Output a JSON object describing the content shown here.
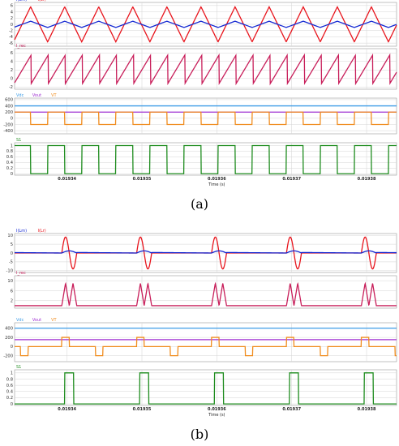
{
  "chart_data": [
    {
      "type": "line",
      "caption": "(a)",
      "x_axis": {
        "ticks": [
          "0.01934",
          "0.01935",
          "0.01936",
          "0.01937",
          "0.01938"
        ],
        "label": "Time (s)"
      },
      "panels": [
        {
          "legend": [
            "I(Lm)",
            "I(Lr)"
          ],
          "ylim": [
            -7,
            7
          ],
          "yticks": [
            "6",
            "4",
            "2",
            "0",
            "-2",
            "-4",
            "-6"
          ],
          "grid": true,
          "series": [
            {
              "color": "#e8141c",
              "shape": "triangle",
              "period": 4.55e-06,
              "values": [
                -5.6,
                5.6
              ]
            },
            {
              "color": "#1428d2",
              "shape": "triangle",
              "period": 4.55e-06,
              "values": [
                -1,
                1
              ]
            }
          ]
        },
        {
          "legend": [
            "I_rec"
          ],
          "ylim": [
            -2.5,
            7
          ],
          "yticks": [
            "6",
            "4",
            "2",
            "0",
            "-2"
          ],
          "grid": true,
          "series": [
            {
              "color": "#c81e5a",
              "shape": "sawtooth",
              "period": 2.28e-06,
              "values": [
                -1.2,
                5.5
              ]
            }
          ]
        },
        {
          "legend": [
            "Vdc",
            "Vout",
            "VT"
          ],
          "ylim": [
            -500,
            650
          ],
          "yticks": [
            "600",
            "400",
            "200",
            "0",
            "-200",
            "-400"
          ],
          "grid": true,
          "series": [
            {
              "color": "#3c9be6",
              "shape": "flat",
              "values": [
                400
              ]
            },
            {
              "color": "#a032d2",
              "shape": "flat",
              "values": [
                200
              ]
            },
            {
              "color": "#f08c1e",
              "shape": "square",
              "period": 4.55e-06,
              "values": [
                -200,
                200
              ]
            }
          ]
        },
        {
          "legend": [
            "S1"
          ],
          "ylim": [
            -0.05,
            1.1
          ],
          "yticks": [
            "1",
            "0.8",
            "0.6",
            "0.4",
            "0.2",
            "0"
          ],
          "grid": true,
          "series": [
            {
              "color": "#1e8c1e",
              "shape": "pulse",
              "period": 4.55e-06,
              "duty": 0.5,
              "values": [
                0,
                1
              ]
            }
          ]
        }
      ]
    },
    {
      "type": "line",
      "caption": "(b)",
      "x_axis": {
        "ticks": [
          "0.01934",
          "0.01935",
          "0.01936",
          "0.01937",
          "0.01938"
        ],
        "label": "Time (s)"
      },
      "panels": [
        {
          "legend": [
            "I(Lm)",
            "I(Lr)"
          ],
          "ylim": [
            -11,
            11
          ],
          "yticks": [
            "10",
            "5",
            "0",
            "-5",
            "-10"
          ],
          "grid": true,
          "series": [
            {
              "color": "#e8141c",
              "shape": "resonant_pair",
              "period": 1e-05,
              "values": [
                -9,
                9
              ]
            },
            {
              "color": "#1428d2",
              "shape": "magnetizing",
              "period": 1e-05,
              "values": [
                -2,
                2
              ]
            }
          ]
        },
        {
          "legend": [
            "I_rec"
          ],
          "ylim": [
            -1,
            12
          ],
          "yticks": [
            "10",
            "6",
            "2"
          ],
          "grid": true,
          "series": [
            {
              "color": "#c81e5a",
              "shape": "rectified_pulses",
              "period": 1e-05,
              "values": [
                0,
                9
              ]
            }
          ]
        },
        {
          "legend": [
            "Vdc",
            "Vout",
            "VT"
          ],
          "ylim": [
            -330,
            520
          ],
          "yticks": [
            "400",
            "200",
            "0",
            "-200"
          ],
          "grid": true,
          "series": [
            {
              "color": "#3c9be6",
              "shape": "flat",
              "values": [
                400
              ]
            },
            {
              "color": "#a032d2",
              "shape": "flat",
              "values": [
                150
              ]
            },
            {
              "color": "#f08c1e",
              "shape": "vt_burst",
              "period": 1e-05,
              "values": [
                -200,
                0,
                200
              ]
            }
          ]
        },
        {
          "legend": [
            "S1"
          ],
          "ylim": [
            -0.05,
            1.1
          ],
          "yticks": [
            "1",
            "0.8",
            "0.6",
            "0.4",
            "0.2",
            "0"
          ],
          "grid": true,
          "series": [
            {
              "color": "#1e8c1e",
              "shape": "narrow_pulse",
              "period": 1e-05,
              "duty": 0.12,
              "values": [
                0,
                1
              ]
            }
          ]
        }
      ]
    }
  ]
}
